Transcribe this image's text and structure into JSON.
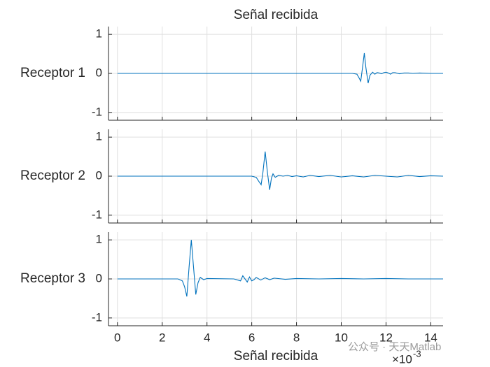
{
  "chart_data": [
    {
      "type": "line",
      "title": "Señal recibida",
      "ylabel": "Receptor 1",
      "color": "#0072bd",
      "grid": true,
      "xlim": [
        -0.4,
        14.55
      ],
      "xticks": [
        0,
        2,
        4,
        6,
        8,
        10,
        12,
        14
      ],
      "ylim": [
        -1.2,
        1.2
      ],
      "yticks": [
        -1,
        0,
        1
      ],
      "x": [
        0,
        10.5,
        10.7,
        10.8,
        10.87,
        10.95,
        11.03,
        11.1,
        11.2,
        11.28,
        11.4,
        11.5,
        11.6,
        11.7,
        11.8,
        11.9,
        12.0,
        12.1,
        12.2,
        12.3,
        12.4,
        12.6,
        12.8,
        13.0,
        13.2,
        13.5,
        14.0,
        14.55
      ],
      "values": [
        0,
        0,
        -0.02,
        -0.12,
        -0.2,
        0.15,
        0.52,
        0.15,
        -0.25,
        -0.05,
        0.03,
        -0.02,
        0.02,
        0.01,
        -0.01,
        0.02,
        0.03,
        0.01,
        -0.02,
        0.02,
        0.02,
        -0.01,
        0.01,
        0.01,
        0,
        0.01,
        0,
        0
      ]
    },
    {
      "type": "line",
      "ylabel": "Receptor 2",
      "color": "#0072bd",
      "grid": true,
      "xlim": [
        -0.4,
        14.55
      ],
      "xticks": [
        0,
        2,
        4,
        6,
        8,
        10,
        12,
        14
      ],
      "ylim": [
        -1.2,
        1.2
      ],
      "yticks": [
        -1,
        0,
        1
      ],
      "x": [
        0,
        6.0,
        6.2,
        6.3,
        6.42,
        6.5,
        6.6,
        6.7,
        6.8,
        6.88,
        6.95,
        7.05,
        7.2,
        7.4,
        7.6,
        7.8,
        8.0,
        8.3,
        8.6,
        9.0,
        9.5,
        10,
        10.5,
        11,
        11.5,
        12,
        12.5,
        13,
        13.5,
        14,
        14.55
      ],
      "values": [
        0,
        0,
        -0.03,
        -0.12,
        -0.22,
        0.1,
        0.63,
        0.1,
        -0.35,
        -0.05,
        0.06,
        -0.03,
        0.02,
        0,
        0.02,
        -0.01,
        0.01,
        -0.02,
        0.02,
        -0.01,
        0.02,
        -0.02,
        0.01,
        -0.02,
        0.02,
        0,
        -0.02,
        0.02,
        -0.01,
        0.01,
        0
      ]
    },
    {
      "type": "line",
      "ylabel": "Receptor 3",
      "xlabel": "Señal recibida",
      "x_exponent": {
        "base": "×10",
        "power": "-3"
      },
      "color": "#0072bd",
      "grid": true,
      "xlim": [
        -0.4,
        14.55
      ],
      "xticks": [
        0,
        2,
        4,
        6,
        8,
        10,
        12,
        14
      ],
      "ylim": [
        -1.2,
        1.2
      ],
      "yticks": [
        -1,
        0,
        1
      ],
      "x": [
        0,
        2.7,
        2.9,
        3.0,
        3.1,
        3.2,
        3.3,
        3.4,
        3.5,
        3.6,
        3.7,
        3.85,
        4.0,
        5.2,
        5.5,
        5.6,
        5.7,
        5.8,
        5.9,
        6.0,
        6.1,
        6.2,
        6.4,
        6.6,
        6.8,
        7.0,
        7.5,
        8.0,
        9,
        10,
        11,
        12,
        13,
        14,
        14.55
      ],
      "values": [
        0,
        0,
        -0.05,
        -0.2,
        -0.45,
        0.3,
        1.0,
        0.3,
        -0.4,
        -0.1,
        0.04,
        -0.02,
        0.01,
        0,
        -0.05,
        0.08,
        0,
        -0.08,
        0.05,
        -0.05,
        -0.02,
        0.04,
        -0.03,
        0.03,
        -0.02,
        0.02,
        -0.01,
        0.01,
        0,
        0.01,
        0,
        0.01,
        0,
        0,
        0
      ]
    }
  ],
  "watermark": "公众号 · 天天Matlab"
}
